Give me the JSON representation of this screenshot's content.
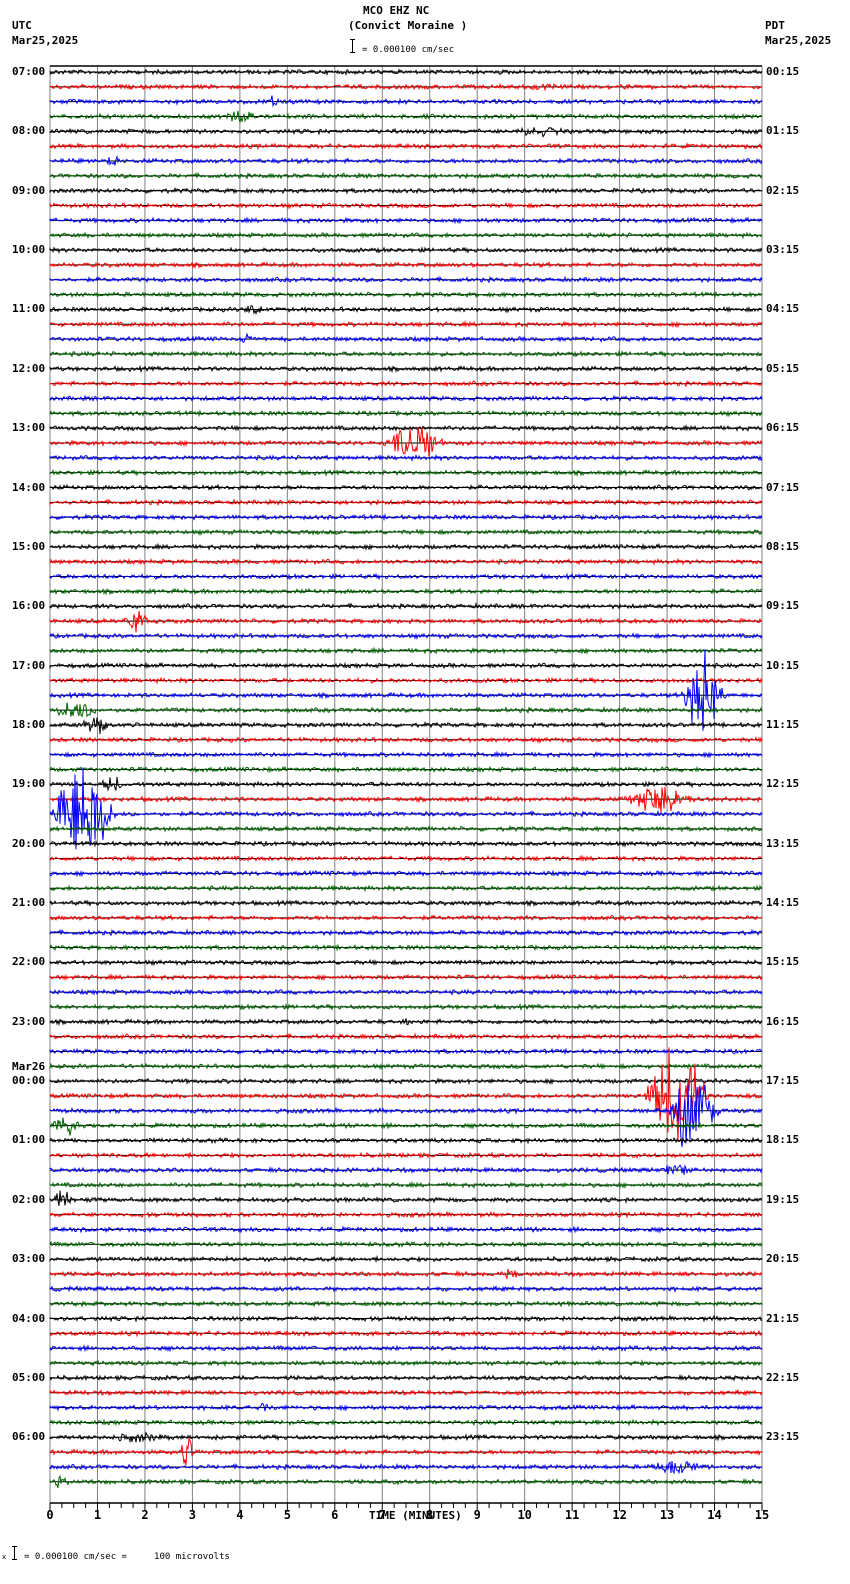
{
  "header": {
    "station": "MCO EHZ NC",
    "site_name": "(Convict Moraine )",
    "left_tz": "UTC",
    "left_date": "Mar25,2025",
    "right_tz": "PDT",
    "right_date": "Mar25,2025",
    "scale_text": "= 0.000100 cm/sec"
  },
  "footer": {
    "xlabel": "TIME (MINUTES)",
    "calibration_prefix": "x",
    "calibration_text": "= 0.000100 cm/sec =     100 microvolts"
  },
  "colors": {
    "black": "#000000",
    "red": "#FF0000",
    "blue": "#0000FF",
    "green": "#006400",
    "grid": "#808080"
  },
  "chart_data": {
    "type": "line",
    "title": "MCO EHZ NC (Convict Moraine )",
    "subtitle": "= 0.000100 cm/sec",
    "xlabel": "TIME (MINUTES)",
    "ylabel": "",
    "xlim": [
      0,
      15
    ],
    "x_ticks": [
      0,
      1,
      2,
      3,
      4,
      5,
      6,
      7,
      8,
      9,
      10,
      11,
      12,
      13,
      14,
      15
    ],
    "grid": true,
    "trace_colors_cycle": [
      "black",
      "red",
      "blue",
      "green"
    ],
    "traces_per_hour": 4,
    "trace_count": 96,
    "left_labels": [
      {
        "row": 0,
        "text": "07:00"
      },
      {
        "row": 4,
        "text": "08:00"
      },
      {
        "row": 8,
        "text": "09:00"
      },
      {
        "row": 12,
        "text": "10:00"
      },
      {
        "row": 16,
        "text": "11:00"
      },
      {
        "row": 20,
        "text": "12:00"
      },
      {
        "row": 24,
        "text": "13:00"
      },
      {
        "row": 28,
        "text": "14:00"
      },
      {
        "row": 32,
        "text": "15:00"
      },
      {
        "row": 36,
        "text": "16:00"
      },
      {
        "row": 40,
        "text": "17:00"
      },
      {
        "row": 44,
        "text": "18:00"
      },
      {
        "row": 48,
        "text": "19:00"
      },
      {
        "row": 52,
        "text": "20:00"
      },
      {
        "row": 56,
        "text": "21:00"
      },
      {
        "row": 60,
        "text": "22:00"
      },
      {
        "row": 64,
        "text": "23:00"
      },
      {
        "row": 68,
        "text": "00:00",
        "date": "Mar26"
      },
      {
        "row": 72,
        "text": "01:00"
      },
      {
        "row": 76,
        "text": "02:00"
      },
      {
        "row": 80,
        "text": "03:00"
      },
      {
        "row": 84,
        "text": "04:00"
      },
      {
        "row": 88,
        "text": "05:00"
      },
      {
        "row": 92,
        "text": "06:00"
      }
    ],
    "right_labels": [
      {
        "row": 0,
        "text": "00:15"
      },
      {
        "row": 4,
        "text": "01:15"
      },
      {
        "row": 8,
        "text": "02:15"
      },
      {
        "row": 12,
        "text": "03:15"
      },
      {
        "row": 16,
        "text": "04:15"
      },
      {
        "row": 20,
        "text": "05:15"
      },
      {
        "row": 24,
        "text": "06:15"
      },
      {
        "row": 28,
        "text": "07:15"
      },
      {
        "row": 32,
        "text": "08:15"
      },
      {
        "row": 36,
        "text": "09:15"
      },
      {
        "row": 40,
        "text": "10:15"
      },
      {
        "row": 44,
        "text": "11:15"
      },
      {
        "row": 48,
        "text": "12:15"
      },
      {
        "row": 52,
        "text": "13:15"
      },
      {
        "row": 56,
        "text": "14:15"
      },
      {
        "row": 60,
        "text": "15:15"
      },
      {
        "row": 64,
        "text": "16:15"
      },
      {
        "row": 68,
        "text": "17:15"
      },
      {
        "row": 72,
        "text": "18:15"
      },
      {
        "row": 76,
        "text": "19:15"
      },
      {
        "row": 80,
        "text": "20:15"
      },
      {
        "row": 84,
        "text": "21:15"
      },
      {
        "row": 88,
        "text": "22:15"
      },
      {
        "row": 92,
        "text": "23:15"
      }
    ],
    "events": [
      {
        "row": 1,
        "start_min": 9.5,
        "end_min": 12.5,
        "amp": 4
      },
      {
        "row": 2,
        "start_min": 4.5,
        "end_min": 5.2,
        "amp": 7
      },
      {
        "row": 3,
        "start_min": 3.6,
        "end_min": 5.0,
        "amp": 8
      },
      {
        "row": 4,
        "start_min": 9.6,
        "end_min": 12.2,
        "amp": 6
      },
      {
        "row": 6,
        "start_min": 1.1,
        "end_min": 1.8,
        "amp": 10
      },
      {
        "row": 16,
        "start_min": 4.0,
        "end_min": 5.0,
        "amp": 9
      },
      {
        "row": 18,
        "start_min": 3.9,
        "end_min": 4.8,
        "amp": 6
      },
      {
        "row": 25,
        "start_min": 7.0,
        "end_min": 9.4,
        "amp": 22
      },
      {
        "row": 37,
        "start_min": 1.5,
        "end_min": 2.6,
        "amp": 14
      },
      {
        "row": 42,
        "start_min": 13.3,
        "end_min": 15.0,
        "amp": 50
      },
      {
        "row": 43,
        "start_min": 0.0,
        "end_min": 2.0,
        "amp": 14
      },
      {
        "row": 44,
        "start_min": 0.6,
        "end_min": 1.9,
        "amp": 12
      },
      {
        "row": 48,
        "start_min": 1.0,
        "end_min": 2.1,
        "amp": 10
      },
      {
        "row": 49,
        "start_min": 12.0,
        "end_min": 15.0,
        "amp": 18
      },
      {
        "row": 50,
        "start_min": 0.0,
        "end_min": 2.5,
        "amp": 60
      },
      {
        "row": 64,
        "start_min": 7.3,
        "end_min": 7.9,
        "amp": 6
      },
      {
        "row": 69,
        "start_min": 12.5,
        "end_min": 15.0,
        "amp": 60
      },
      {
        "row": 70,
        "start_min": 13.0,
        "end_min": 15.0,
        "amp": 50
      },
      {
        "row": 71,
        "start_min": 0.0,
        "end_min": 1.2,
        "amp": 14
      },
      {
        "row": 74,
        "start_min": 12.8,
        "end_min": 14.2,
        "amp": 8
      },
      {
        "row": 76,
        "start_min": 0.0,
        "end_min": 0.9,
        "amp": 12
      },
      {
        "row": 81,
        "start_min": 9.5,
        "end_min": 10.3,
        "amp": 8
      },
      {
        "row": 90,
        "start_min": 4.4,
        "end_min": 4.8,
        "amp": 8
      },
      {
        "row": 92,
        "start_min": 1.0,
        "end_min": 4.2,
        "amp": 6
      },
      {
        "row": 93,
        "start_min": 2.7,
        "end_min": 3.3,
        "amp": 22
      },
      {
        "row": 94,
        "start_min": 12.5,
        "end_min": 15.0,
        "amp": 9
      },
      {
        "row": 95,
        "start_min": 0.0,
        "end_min": 0.8,
        "amp": 10
      }
    ]
  }
}
